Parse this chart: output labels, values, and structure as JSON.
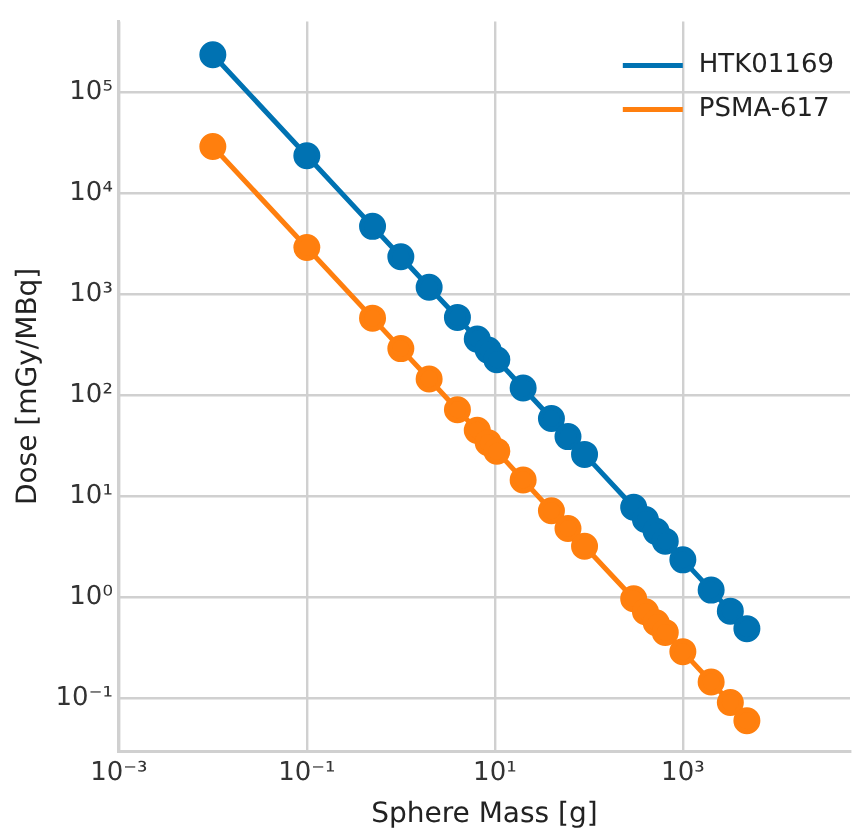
{
  "chart_data": {
    "type": "line",
    "xlabel": "Sphere Mass [g]",
    "ylabel": "Dose [mGy/MBq]",
    "log": "xy",
    "grid": true,
    "legend": "top right",
    "marker": "circle",
    "line_style": "solid",
    "x": [
      0.01,
      0.1,
      0.5,
      1,
      2,
      4,
      6.5,
      8.5,
      10.5,
      20,
      40,
      60,
      90,
      300,
      400,
      520,
      650,
      1000,
      2000,
      3200,
      4800
    ],
    "xlim": [
      0.001,
      60000
    ],
    "ylim": [
      0.03,
      500000
    ],
    "xticks": [
      {
        "value": 0.001,
        "label": "10⁻³"
      },
      {
        "value": 0.1,
        "label": "10⁻¹"
      },
      {
        "value": 10,
        "label": "10¹"
      },
      {
        "value": 1000,
        "label": "10³"
      }
    ],
    "yticks": [
      {
        "value": 0.1,
        "label": "10⁻¹"
      },
      {
        "value": 1,
        "label": "10⁰"
      },
      {
        "value": 10,
        "label": "10¹"
      },
      {
        "value": 100,
        "label": "10²"
      },
      {
        "value": 1000,
        "label": "10³"
      },
      {
        "value": 10000,
        "label": "10⁴"
      },
      {
        "value": 100000,
        "label": "10⁵"
      }
    ],
    "series": [
      {
        "name": "HTK01169",
        "color": "#0072b2",
        "values": [
          235000,
          23500,
          4700,
          2350,
          1175,
          590,
          360,
          280,
          225,
          118,
          59,
          39,
          26,
          7.8,
          5.9,
          4.5,
          3.6,
          2.35,
          1.18,
          0.73,
          0.49
        ]
      },
      {
        "name": "PSMA-617",
        "color": "#ff7f0e",
        "values": [
          29000,
          2900,
          580,
          290,
          145,
          72,
          45,
          34,
          28,
          14.5,
          7.2,
          4.8,
          3.2,
          0.97,
          0.72,
          0.56,
          0.45,
          0.29,
          0.145,
          0.091,
          0.06
        ]
      }
    ]
  }
}
